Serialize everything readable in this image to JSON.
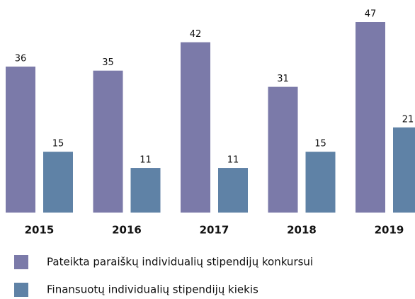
{
  "chart_data": {
    "type": "bar",
    "categories": [
      "2015",
      "2016",
      "2017",
      "2018",
      "2019"
    ],
    "series": [
      {
        "name": "Pateikta paraiškų individualių stipendijų konkursui",
        "color": "#7b7aa9",
        "values": [
          36,
          35,
          42,
          31,
          47
        ]
      },
      {
        "name": "Finansuotų individualių stipendijų kiekis",
        "color": "#5f82a6",
        "values": [
          15,
          11,
          11,
          15,
          21
        ]
      }
    ],
    "legend": "bottom-left"
  }
}
